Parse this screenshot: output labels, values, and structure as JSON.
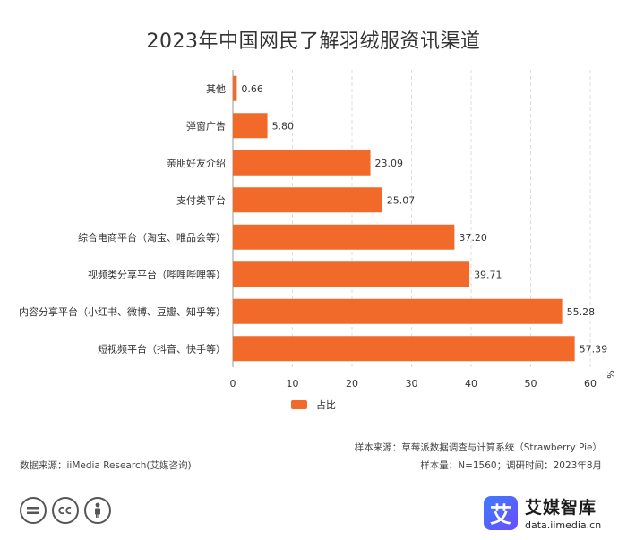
{
  "chart_data": {
    "type": "bar",
    "orientation": "horizontal",
    "title": "2023年中国网民了解羽绒服资讯渠道",
    "categories": [
      "其他",
      "弹窗广告",
      "亲朋好友介绍",
      "支付类平台",
      "综合电商平台（淘宝、唯品会等）",
      "视频类分享平台（哔哩哔哩等）",
      "内容分享平台（小红书、微博、豆瓣、知乎等）",
      "短视频平台（抖音、快手等）"
    ],
    "series": [
      {
        "name": "占比",
        "values": [
          0.66,
          5.8,
          23.09,
          25.07,
          37.2,
          39.71,
          55.28,
          57.39
        ]
      }
    ],
    "value_labels": [
      "0.66",
      "5.80",
      "23.09",
      "25.07",
      "37.20",
      "39.71",
      "55.28",
      "57.39"
    ],
    "x_ticks": [
      "0",
      "10",
      "20",
      "30",
      "40",
      "50",
      "60"
    ],
    "xlim": [
      0,
      60
    ],
    "x_unit": "%",
    "grid": "vertical dashed",
    "legend_position": "bottom",
    "bar_color": "#F26A2A"
  },
  "sources": {
    "sample_source": "样本来源：草莓派数据调查与计算系统（Strawberry Pie）",
    "sample_size": "样本量：N=1560；调研时间：2023年8月",
    "data_source": "数据来源：iiMedia Research(艾媒咨询)"
  },
  "license_icons": [
    "equal-icon",
    "cc-icon",
    "person-icon"
  ],
  "brand": {
    "mark": "艾",
    "name": "艾媒智库",
    "url": "data.iimedia.cn"
  }
}
